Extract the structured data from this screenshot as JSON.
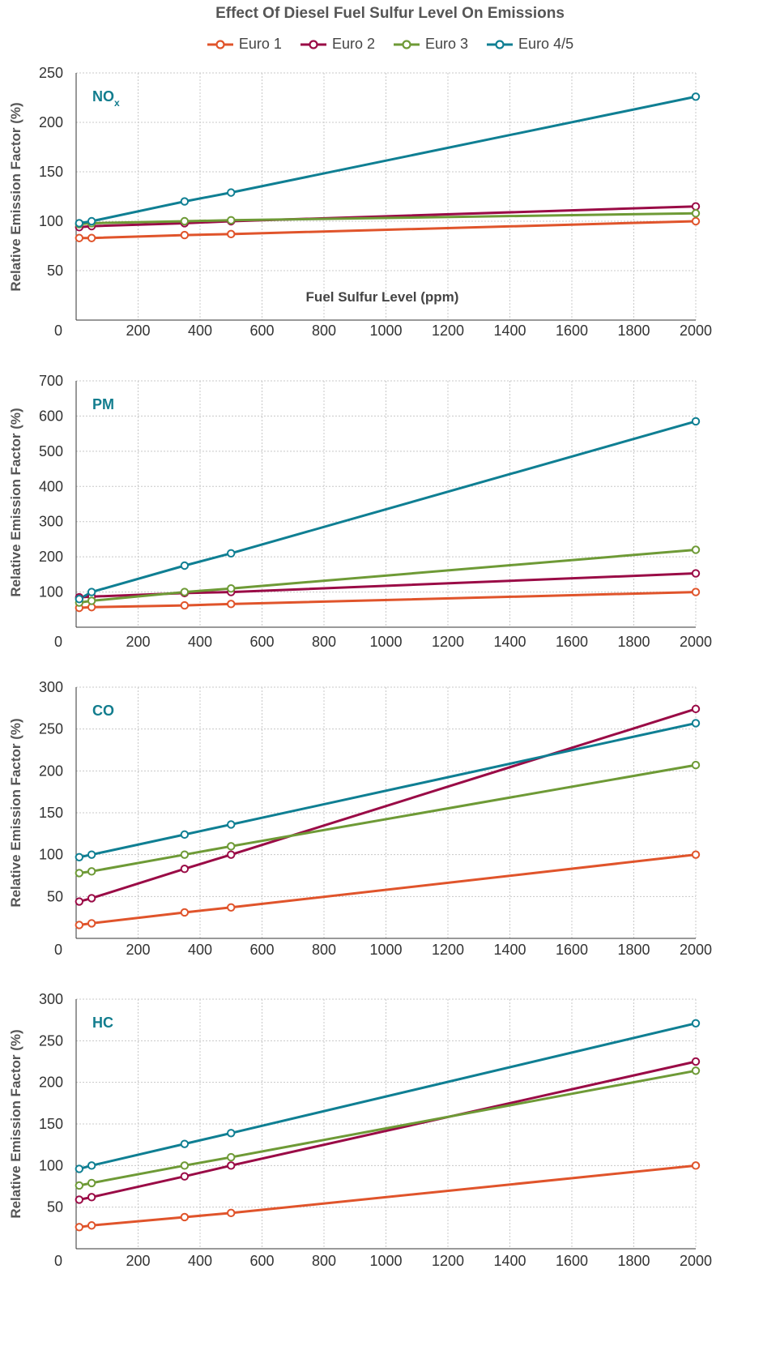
{
  "title": "Effect Of Diesel Fuel Sulfur Level On Emissions",
  "legend": [
    "Euro 1",
    "Euro 2",
    "Euro 3",
    "Euro 4/5"
  ],
  "colors": {
    "Euro 1": "#e0542b",
    "Euro 2": "#9a0b46",
    "Euro 3": "#6e9a36",
    "Euro 4/5": "#0f7f93",
    "panel_label": "#127d8e",
    "grid": "#c8c8c8",
    "axis": "#333333"
  },
  "chart_data": [
    {
      "type": "line",
      "panel_label": "NO",
      "panel_label_sub": "x",
      "ylabel": "Relative Emission Factor (%)",
      "xlabel": "Fuel Sulfur Level (ppm)",
      "ylim": [
        0,
        250
      ],
      "yticks": [
        50,
        100,
        150,
        200,
        250
      ],
      "xlim": [
        0,
        2000
      ],
      "xticks": [
        0,
        200,
        400,
        600,
        800,
        1000,
        1200,
        1400,
        1600,
        1800,
        2000
      ],
      "grid": true,
      "x": [
        10,
        50,
        350,
        500,
        2000
      ],
      "series": [
        {
          "name": "Euro 1",
          "values": [
            83,
            83,
            86,
            87,
            100
          ]
        },
        {
          "name": "Euro 2",
          "values": [
            94,
            95,
            98,
            100,
            115
          ]
        },
        {
          "name": "Euro 3",
          "values": [
            97,
            98,
            100,
            101,
            108
          ]
        },
        {
          "name": "Euro 4/5",
          "values": [
            98,
            100,
            120,
            129,
            226
          ]
        }
      ]
    },
    {
      "type": "line",
      "panel_label": "PM",
      "panel_label_sub": "",
      "ylabel": "Relative Emission Factor (%)",
      "xlabel": "",
      "ylim": [
        0,
        700
      ],
      "yticks": [
        100,
        200,
        300,
        400,
        500,
        600,
        700
      ],
      "xlim": [
        0,
        2000
      ],
      "xticks": [
        0,
        200,
        400,
        600,
        800,
        1000,
        1200,
        1400,
        1600,
        1800,
        2000
      ],
      "grid": true,
      "x": [
        10,
        50,
        350,
        500,
        2000
      ],
      "series": [
        {
          "name": "Euro 1",
          "values": [
            55,
            57,
            62,
            66,
            100
          ]
        },
        {
          "name": "Euro 2",
          "values": [
            85,
            87,
            97,
            100,
            153
          ]
        },
        {
          "name": "Euro 3",
          "values": [
            70,
            75,
            100,
            110,
            220
          ]
        },
        {
          "name": "Euro 4/5",
          "values": [
            80,
            100,
            175,
            210,
            585
          ]
        }
      ]
    },
    {
      "type": "line",
      "panel_label": "CO",
      "panel_label_sub": "",
      "ylabel": "Relative Emission Factor (%)",
      "xlabel": "",
      "ylim": [
        0,
        300
      ],
      "yticks": [
        50,
        100,
        150,
        200,
        250,
        300
      ],
      "xlim": [
        0,
        2000
      ],
      "xticks": [
        0,
        200,
        400,
        600,
        800,
        1000,
        1200,
        1400,
        1600,
        1800,
        2000
      ],
      "grid": true,
      "x": [
        10,
        50,
        350,
        500,
        2000
      ],
      "series": [
        {
          "name": "Euro 1",
          "values": [
            16,
            18,
            31,
            37,
            100
          ]
        },
        {
          "name": "Euro 2",
          "values": [
            44,
            48,
            83,
            100,
            274
          ]
        },
        {
          "name": "Euro 3",
          "values": [
            78,
            80,
            100,
            110,
            207
          ]
        },
        {
          "name": "Euro 4/5",
          "values": [
            97,
            100,
            124,
            136,
            257
          ]
        }
      ]
    },
    {
      "type": "line",
      "panel_label": "HC",
      "panel_label_sub": "",
      "ylabel": "Relative Emission Factor (%)",
      "xlabel": "",
      "ylim": [
        0,
        300
      ],
      "yticks": [
        50,
        100,
        150,
        200,
        250,
        300
      ],
      "xlim": [
        0,
        2000
      ],
      "xticks": [
        0,
        200,
        400,
        600,
        800,
        1000,
        1200,
        1400,
        1600,
        1800,
        2000
      ],
      "grid": true,
      "x": [
        10,
        50,
        350,
        500,
        2000
      ],
      "series": [
        {
          "name": "Euro 1",
          "values": [
            26,
            28,
            38,
            43,
            100
          ]
        },
        {
          "name": "Euro 2",
          "values": [
            59,
            62,
            87,
            100,
            225
          ]
        },
        {
          "name": "Euro 3",
          "values": [
            76,
            79,
            100,
            110,
            214
          ]
        },
        {
          "name": "Euro 4/5",
          "values": [
            96,
            100,
            126,
            139,
            271
          ]
        }
      ]
    }
  ]
}
